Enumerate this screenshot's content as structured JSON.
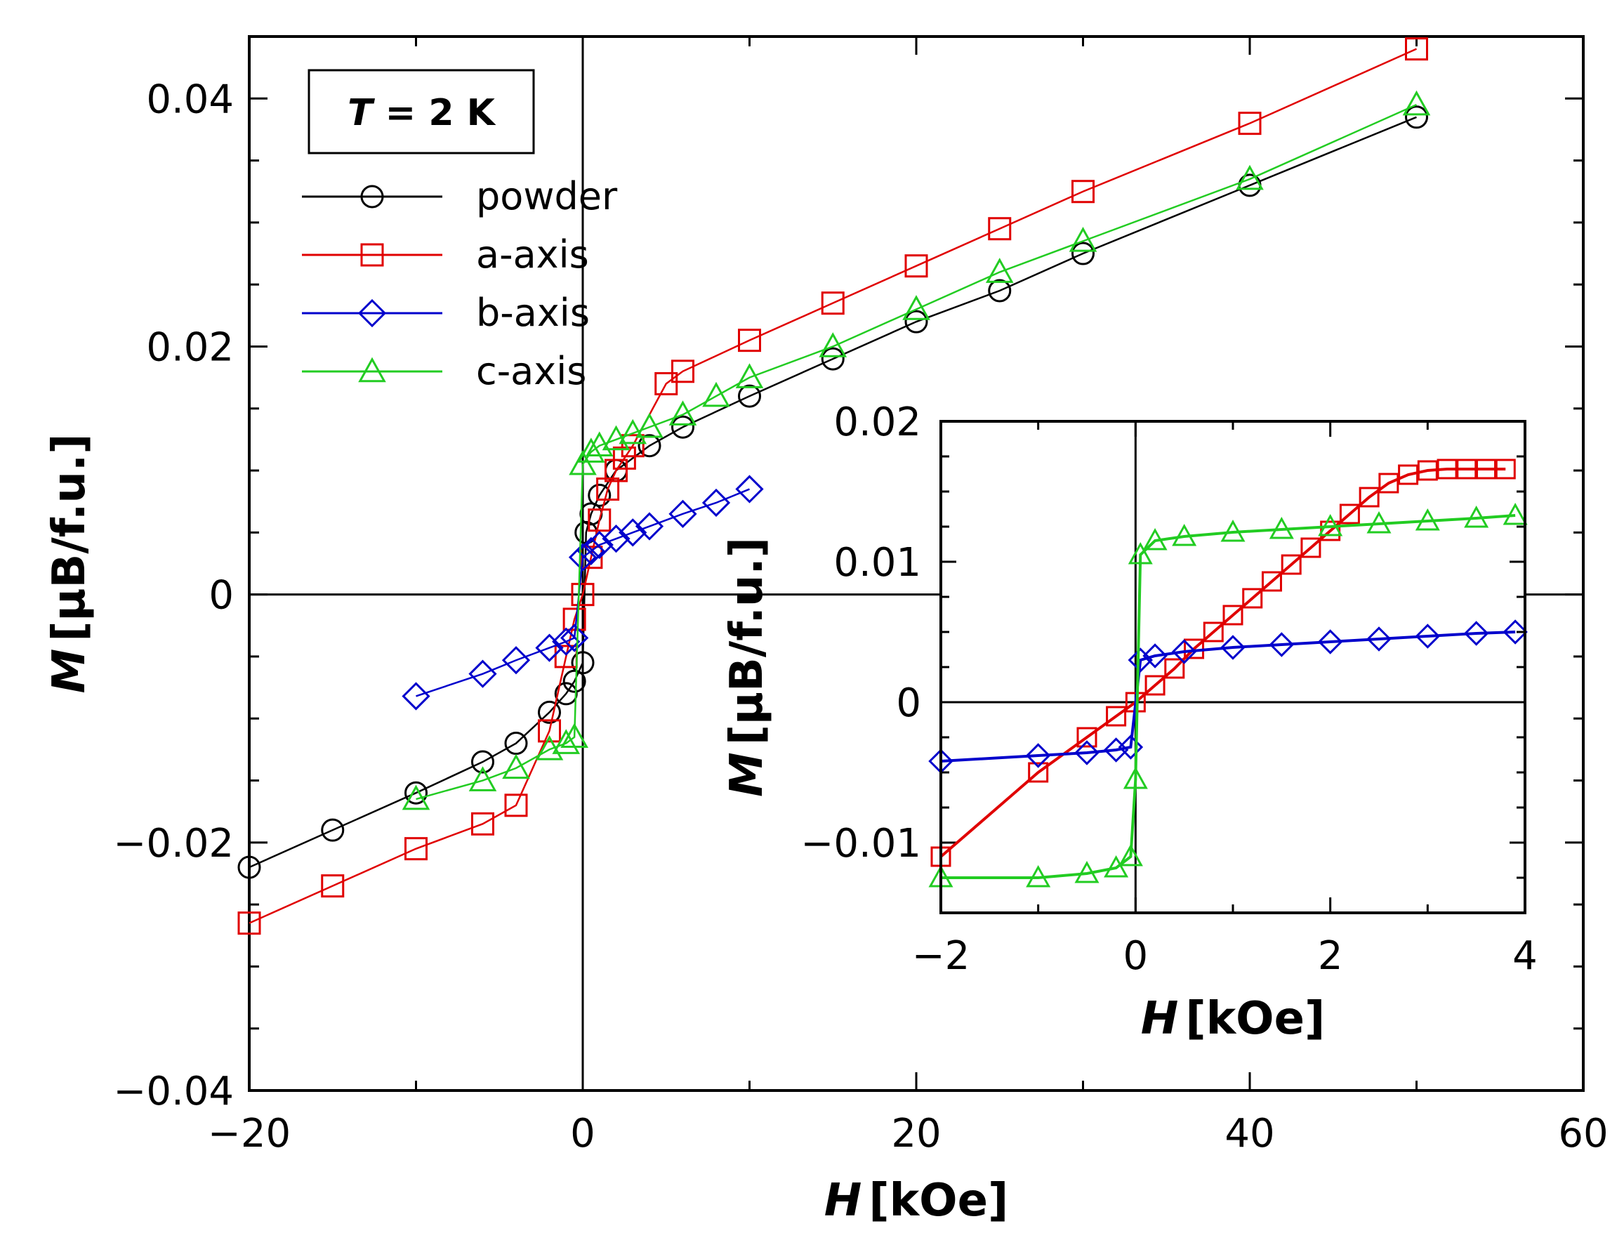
{
  "chart_data": [
    {
      "type": "line",
      "name": "main",
      "xlabel_var": "H",
      "xlabel_unit": "[kOe]",
      "ylabel_var": "M",
      "ylabel_unit": "[μB/f.u.]",
      "xlim": [
        -20,
        60
      ],
      "ylim": [
        -0.04,
        0.045
      ],
      "xticks": [
        -20,
        0,
        20,
        40,
        60
      ],
      "xtick_labels": [
        "−20",
        "0",
        "20",
        "40",
        "60"
      ],
      "yticks": [
        -0.04,
        -0.02,
        0,
        0.02,
        0.04
      ],
      "ytick_labels": [
        "−0.04",
        "−0.02",
        "0",
        "0.02",
        "0.04"
      ],
      "annotation_var": "T",
      "annotation_rest": " = 2 K",
      "legend_position": "top-left",
      "series": [
        {
          "name": "powder",
          "color": "#000000",
          "marker": "circle",
          "x": [
            -20,
            -15,
            -10,
            -6,
            -4,
            -2,
            -1,
            -0.5,
            0,
            0.2,
            0.5,
            1,
            2,
            4,
            6,
            10,
            15,
            20,
            25,
            30,
            40,
            50
          ],
          "y": [
            -0.022,
            -0.019,
            -0.016,
            -0.0135,
            -0.012,
            -0.0095,
            -0.008,
            -0.007,
            -0.0055,
            0.005,
            0.0065,
            0.008,
            0.01,
            0.012,
            0.0135,
            0.016,
            0.019,
            0.022,
            0.0245,
            0.0275,
            0.033,
            0.0385
          ]
        },
        {
          "name": "a-axis",
          "color": "#e00000",
          "marker": "square",
          "x": [
            -20,
            -15,
            -10,
            -6,
            -4,
            -2,
            -1,
            -0.5,
            0,
            0.5,
            1,
            1.5,
            2,
            2.5,
            3,
            5,
            6,
            10,
            15,
            20,
            25,
            30,
            40,
            50
          ],
          "y": [
            -0.0265,
            -0.0235,
            -0.0205,
            -0.0185,
            -0.017,
            -0.011,
            -0.005,
            -0.002,
            0.0,
            0.003,
            0.006,
            0.0085,
            0.01,
            0.011,
            0.012,
            0.017,
            0.018,
            0.0205,
            0.0235,
            0.0265,
            0.0295,
            0.0325,
            0.038,
            0.044
          ]
        },
        {
          "name": "b-axis",
          "color": "#0000cc",
          "marker": "diamond",
          "x": [
            -10,
            -6,
            -4,
            -2,
            -1,
            -0.5,
            0,
            0.5,
            1,
            2,
            3,
            4,
            6,
            8,
            10
          ],
          "y": [
            -0.0082,
            -0.0064,
            -0.0053,
            -0.0043,
            -0.0038,
            -0.0035,
            0.003,
            0.0035,
            0.004,
            0.0045,
            0.005,
            0.0055,
            0.0065,
            0.0074,
            0.0085
          ]
        },
        {
          "name": "c-axis",
          "color": "#22cc22",
          "marker": "triangle",
          "x": [
            -10,
            -6,
            -4,
            -2,
            -1,
            -0.5,
            0,
            0.5,
            1,
            2,
            3,
            4,
            6,
            8,
            10,
            15,
            20,
            25,
            30,
            40,
            50
          ],
          "y": [
            -0.0165,
            -0.015,
            -0.014,
            -0.0125,
            -0.012,
            -0.0115,
            0.0105,
            0.0115,
            0.012,
            0.0125,
            0.013,
            0.0135,
            0.0145,
            0.016,
            0.0175,
            0.02,
            0.023,
            0.026,
            0.0285,
            0.0335,
            0.0395
          ]
        }
      ]
    },
    {
      "type": "line",
      "name": "inset",
      "xlabel_var": "H",
      "xlabel_unit": "[kOe]",
      "ylabel_var": "M",
      "ylabel_unit": "[μB/f.u.]",
      "xlim": [
        -2,
        4
      ],
      "ylim": [
        -0.015,
        0.02
      ],
      "xticks": [
        -2,
        0,
        2,
        4
      ],
      "xtick_labels": [
        "−2",
        "0",
        "2",
        "4"
      ],
      "yticks": [
        -0.01,
        0,
        0.01,
        0.02
      ],
      "ytick_labels": [
        "−0.01",
        "0",
        "0.01",
        "0.02"
      ],
      "series": [
        {
          "name": "a-axis",
          "color": "#e00000",
          "marker": "square",
          "x": [
            -2,
            -1,
            -0.5,
            -0.2,
            0,
            0.2,
            0.4,
            0.6,
            0.8,
            1.0,
            1.2,
            1.4,
            1.6,
            1.8,
            2.0,
            2.2,
            2.4,
            2.6,
            2.8,
            3.0,
            3.2,
            3.4,
            3.6,
            3.8
          ],
          "y": [
            -0.011,
            -0.005,
            -0.0025,
            -0.001,
            0.0,
            0.0012,
            0.0024,
            0.0038,
            0.005,
            0.0062,
            0.0074,
            0.0086,
            0.0098,
            0.011,
            0.0122,
            0.0134,
            0.0146,
            0.0156,
            0.0162,
            0.0165,
            0.0166,
            0.0166,
            0.0166,
            0.0166
          ]
        },
        {
          "name": "b-axis",
          "color": "#0000cc",
          "marker": "diamond",
          "x": [
            -2,
            -1,
            -0.5,
            -0.2,
            -0.05,
            0.05,
            0.2,
            0.5,
            1,
            1.5,
            2,
            2.5,
            3,
            3.5,
            3.9
          ],
          "y": [
            -0.0042,
            -0.0038,
            -0.0036,
            -0.0034,
            -0.0032,
            0.003,
            0.0033,
            0.0036,
            0.0039,
            0.0041,
            0.0043,
            0.0045,
            0.0047,
            0.0049,
            0.005
          ]
        },
        {
          "name": "c-axis",
          "color": "#22cc22",
          "marker": "triangle",
          "x": [
            -2,
            -1,
            -0.5,
            -0.2,
            -0.05,
            0,
            0.05,
            0.2,
            0.5,
            1,
            1.5,
            2,
            2.5,
            3,
            3.5,
            3.9
          ],
          "y": [
            -0.0125,
            -0.0125,
            -0.0122,
            -0.0118,
            -0.011,
            -0.0055,
            0.0105,
            0.0115,
            0.0118,
            0.0121,
            0.0123,
            0.0125,
            0.0127,
            0.0129,
            0.0131,
            0.0133
          ]
        }
      ]
    }
  ]
}
